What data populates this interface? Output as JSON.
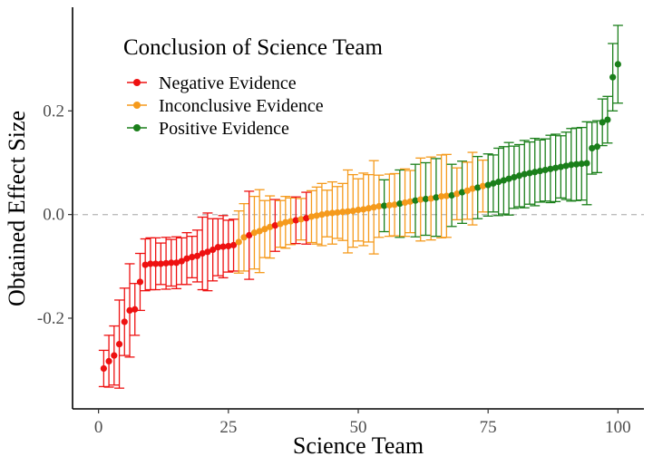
{
  "chart_data": {
    "type": "scatter",
    "variant": "point-with-error-bars",
    "title": "",
    "xlabel": "Science Team",
    "ylabel": "Obtained Effect Size",
    "xlim": [
      -5,
      105
    ],
    "ylim": [
      -0.375,
      0.4
    ],
    "xticks": [
      0,
      25,
      50,
      75,
      100
    ],
    "xtick_labels": [
      "0",
      "25",
      "50",
      "75",
      "100"
    ],
    "yticks": [
      -0.2,
      0.0,
      0.2
    ],
    "ytick_labels": [
      "-0.2",
      "0.0",
      "0.2"
    ],
    "reference_line": {
      "y": 0.0,
      "style": "dashed",
      "color": "#bdbdbd"
    },
    "grid": false,
    "legend": {
      "title": "Conclusion of Science Team",
      "placement": "top-left",
      "entries": [
        {
          "key": "negative",
          "label": "Negative Evidence",
          "color": "#ee1111"
        },
        {
          "key": "inconclusive",
          "label": "Inconclusive Evidence",
          "color": "#f59a1c"
        },
        {
          "key": "positive",
          "label": "Positive Evidence",
          "color": "#1a7f1a"
        }
      ]
    },
    "x": [
      1,
      2,
      3,
      4,
      5,
      6,
      7,
      8,
      9,
      10,
      11,
      12,
      13,
      14,
      15,
      16,
      17,
      18,
      19,
      20,
      21,
      22,
      23,
      24,
      25,
      26,
      27,
      28,
      29,
      30,
      31,
      32,
      33,
      34,
      35,
      36,
      37,
      38,
      39,
      40,
      41,
      42,
      43,
      44,
      45,
      46,
      47,
      48,
      49,
      50,
      51,
      52,
      53,
      54,
      55,
      56,
      57,
      58,
      59,
      60,
      61,
      62,
      63,
      64,
      65,
      66,
      67,
      68,
      69,
      70,
      71,
      72,
      73,
      74,
      75,
      76,
      77,
      78,
      79,
      80,
      81,
      82,
      83,
      84,
      85,
      86,
      87,
      88,
      89,
      90,
      91,
      92,
      93,
      94,
      95,
      96,
      97,
      98,
      99,
      100
    ],
    "y": [
      -0.297,
      -0.283,
      -0.272,
      -0.25,
      -0.207,
      -0.185,
      -0.183,
      -0.13,
      -0.097,
      -0.095,
      -0.095,
      -0.095,
      -0.094,
      -0.093,
      -0.093,
      -0.09,
      -0.085,
      -0.082,
      -0.08,
      -0.075,
      -0.072,
      -0.068,
      -0.063,
      -0.062,
      -0.061,
      -0.059,
      -0.053,
      -0.044,
      -0.04,
      -0.035,
      -0.032,
      -0.028,
      -0.024,
      -0.021,
      -0.018,
      -0.015,
      -0.013,
      -0.011,
      -0.009,
      -0.007,
      -0.004,
      -0.002,
      0.0,
      0.002,
      0.003,
      0.004,
      0.005,
      0.006,
      0.007,
      0.009,
      0.01,
      0.012,
      0.014,
      0.016,
      0.017,
      0.018,
      0.019,
      0.021,
      0.023,
      0.025,
      0.027,
      0.029,
      0.03,
      0.031,
      0.033,
      0.035,
      0.036,
      0.037,
      0.04,
      0.043,
      0.046,
      0.05,
      0.052,
      0.055,
      0.057,
      0.06,
      0.063,
      0.066,
      0.069,
      0.072,
      0.075,
      0.078,
      0.08,
      0.082,
      0.084,
      0.086,
      0.088,
      0.09,
      0.092,
      0.094,
      0.096,
      0.097,
      0.098,
      0.099,
      0.128,
      0.131,
      0.178,
      0.183,
      0.265,
      0.29
    ],
    "ci_halfwidth": [
      0.035,
      0.05,
      0.057,
      0.085,
      0.065,
      0.09,
      0.05,
      0.055,
      0.05,
      0.05,
      0.05,
      0.04,
      0.05,
      0.045,
      0.05,
      0.045,
      0.05,
      0.04,
      0.05,
      0.07,
      0.075,
      0.06,
      0.055,
      0.06,
      0.05,
      0.05,
      0.06,
      0.065,
      0.085,
      0.07,
      0.08,
      0.055,
      0.06,
      0.05,
      0.045,
      0.05,
      0.045,
      0.045,
      0.04,
      0.05,
      0.05,
      0.055,
      0.06,
      0.045,
      0.06,
      0.05,
      0.055,
      0.08,
      0.07,
      0.06,
      0.07,
      0.065,
      0.09,
      0.06,
      0.05,
      0.06,
      0.06,
      0.065,
      0.065,
      0.06,
      0.07,
      0.08,
      0.07,
      0.08,
      0.075,
      0.08,
      0.08,
      0.06,
      0.05,
      0.06,
      0.055,
      0.07,
      0.06,
      0.05,
      0.06,
      0.055,
      0.065,
      0.065,
      0.07,
      0.06,
      0.06,
      0.065,
      0.06,
      0.065,
      0.06,
      0.06,
      0.065,
      0.065,
      0.06,
      0.065,
      0.07,
      0.07,
      0.07,
      0.08,
      0.05,
      0.05,
      0.045,
      0.045,
      0.065,
      0.075
    ],
    "group": [
      "negative",
      "negative",
      "negative",
      "negative",
      "negative",
      "negative",
      "negative",
      "negative",
      "negative",
      "negative",
      "negative",
      "negative",
      "negative",
      "negative",
      "negative",
      "negative",
      "negative",
      "negative",
      "negative",
      "negative",
      "negative",
      "negative",
      "negative",
      "negative",
      "negative",
      "negative",
      "inconclusive",
      "inconclusive",
      "negative",
      "inconclusive",
      "inconclusive",
      "inconclusive",
      "inconclusive",
      "negative",
      "inconclusive",
      "inconclusive",
      "inconclusive",
      "negative",
      "inconclusive",
      "negative",
      "inconclusive",
      "inconclusive",
      "inconclusive",
      "inconclusive",
      "inconclusive",
      "inconclusive",
      "inconclusive",
      "inconclusive",
      "inconclusive",
      "inconclusive",
      "inconclusive",
      "inconclusive",
      "inconclusive",
      "inconclusive",
      "positive",
      "inconclusive",
      "inconclusive",
      "positive",
      "inconclusive",
      "inconclusive",
      "positive",
      "inconclusive",
      "positive",
      "inconclusive",
      "positive",
      "inconclusive",
      "inconclusive",
      "positive",
      "inconclusive",
      "positive",
      "inconclusive",
      "inconclusive",
      "positive",
      "inconclusive",
      "positive",
      "positive",
      "positive",
      "positive",
      "positive",
      "positive",
      "positive",
      "positive",
      "positive",
      "positive",
      "positive",
      "positive",
      "positive",
      "positive",
      "positive",
      "positive",
      "positive",
      "positive",
      "positive",
      "positive",
      "positive",
      "positive",
      "positive",
      "positive",
      "positive",
      "positive"
    ]
  }
}
